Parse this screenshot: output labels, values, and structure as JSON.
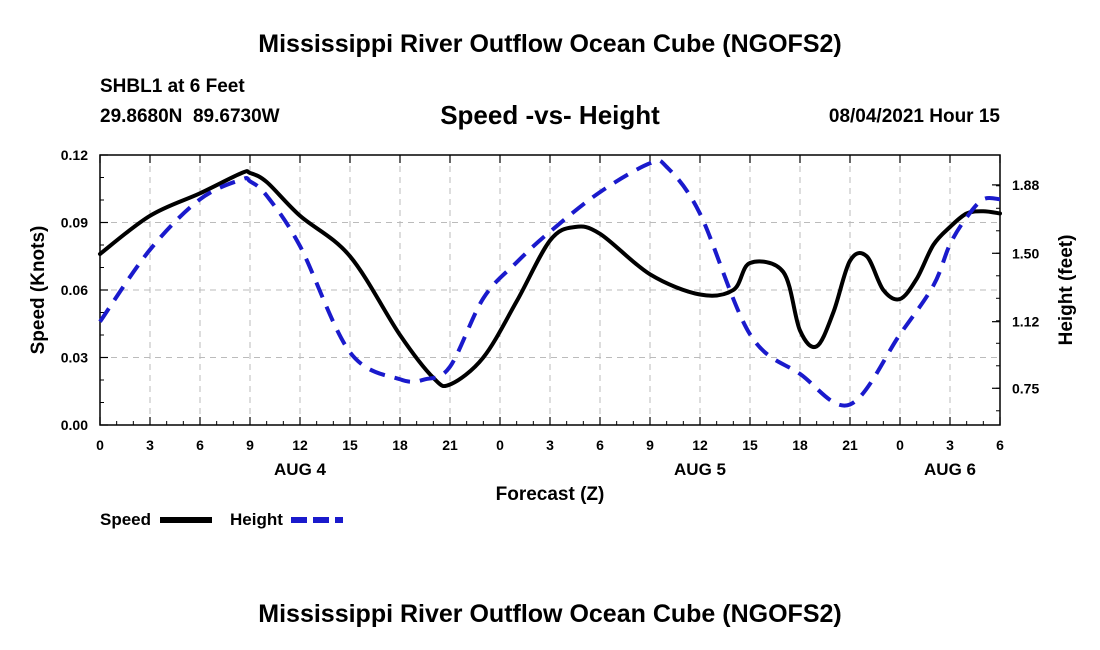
{
  "header": {
    "title": "Mississippi River Outflow Ocean Cube (NGOFS2)",
    "station": "SHBL1 at 6 Feet",
    "coords": "29.8680N  89.6730W",
    "plot_title": "Speed -vs- Height",
    "timestamp": "08/04/2021 Hour 15"
  },
  "footer": {
    "title": "Mississippi River Outflow Ocean Cube (NGOFS2)"
  },
  "legend": {
    "speed_label": "Speed",
    "height_label": "Height"
  },
  "colors": {
    "speed": "#000000",
    "height": "#1a1acc",
    "grid": "#bbbbbb"
  },
  "chart_data": {
    "type": "line",
    "title": "Speed -vs- Height",
    "xlabel": "Forecast (Z)",
    "ylabel": "Speed (Knots)",
    "y2label": "Height (feet)",
    "xlim": [
      0,
      54
    ],
    "ylim": [
      0,
      0.12
    ],
    "y2lim": [
      0.546,
      2.046
    ],
    "x_ticks": [
      0,
      3,
      6,
      9,
      12,
      15,
      18,
      21,
      24,
      27,
      30,
      33,
      36,
      39,
      42,
      45,
      48,
      51,
      54
    ],
    "x_tick_labels": [
      "0",
      "3",
      "6",
      "9",
      "12",
      "15",
      "18",
      "21",
      "0",
      "3",
      "6",
      "9",
      "12",
      "15",
      "18",
      "21",
      "0",
      "3",
      "6"
    ],
    "y_ticks": [
      0,
      0.03,
      0.06,
      0.09,
      0.12
    ],
    "y_tick_labels": [
      "0.00",
      "0.03",
      "0.06",
      "0.09",
      "0.12"
    ],
    "y2_ticks": [
      0.75,
      1.12,
      1.5,
      1.88
    ],
    "y2_tick_labels": [
      "0.75",
      "1.12",
      "1.50",
      "1.88"
    ],
    "date_labels": [
      {
        "x": 12,
        "label": "AUG 4"
      },
      {
        "x": 36,
        "label": "AUG 5"
      },
      {
        "x": 51,
        "label": "AUG 6"
      }
    ],
    "legend_position": "bottom-left",
    "grid": true,
    "series": [
      {
        "name": "Speed",
        "axis": "left",
        "x": [
          0,
          3,
          6,
          8.5,
          9,
          10,
          12,
          15,
          18,
          20,
          21,
          23,
          25,
          27,
          28.5,
          30,
          33,
          36,
          38,
          39,
          41,
          42,
          43,
          44,
          45,
          46,
          47,
          48,
          49,
          50,
          51,
          52,
          53,
          54
        ],
        "values": [
          0.076,
          0.093,
          0.103,
          0.112,
          0.112,
          0.108,
          0.093,
          0.075,
          0.04,
          0.021,
          0.018,
          0.03,
          0.055,
          0.082,
          0.088,
          0.085,
          0.067,
          0.058,
          0.06,
          0.072,
          0.068,
          0.042,
          0.035,
          0.05,
          0.073,
          0.075,
          0.06,
          0.056,
          0.065,
          0.08,
          0.088,
          0.094,
          0.095,
          0.094
        ]
      },
      {
        "name": "Height",
        "axis": "right",
        "x": [
          0,
          3,
          6,
          8.5,
          9,
          10,
          12,
          15,
          18,
          19.5,
          21,
          23,
          25,
          27,
          30,
          33,
          34,
          36,
          39,
          42,
          45,
          48,
          50,
          51,
          52,
          53,
          54
        ],
        "values": [
          1.12,
          1.52,
          1.8,
          1.91,
          1.9,
          1.82,
          1.54,
          0.95,
          0.8,
          0.8,
          0.87,
          1.25,
          1.45,
          1.62,
          1.84,
          2.0,
          1.98,
          1.72,
          1.05,
          0.83,
          0.66,
          1.05,
          1.32,
          1.55,
          1.7,
          1.8,
          1.8
        ]
      }
    ]
  }
}
